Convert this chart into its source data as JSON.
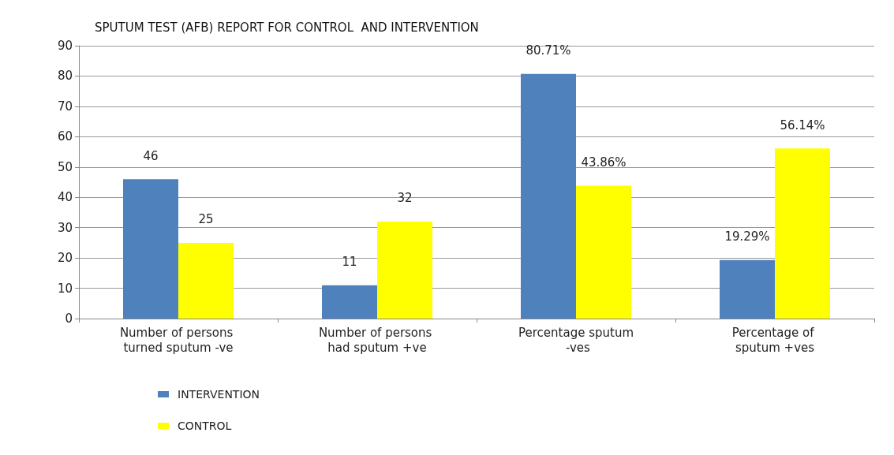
{
  "chart_data": {
    "type": "bar",
    "title": "SPUTUM TEST (AFB) REPORT FOR CONTROL  AND INTERVENTION",
    "categories": [
      "Number of persons turned sputum -ve",
      "Number of persons had sputum +ve",
      "Percentage sputum -ves",
      "Percentage of sputum +ves"
    ],
    "series": [
      {
        "name": "INTERVENTION",
        "color": "#4f81bd",
        "values": [
          46,
          11,
          80.71,
          19.29
        ],
        "value_labels": [
          "46",
          "11",
          "80.71%",
          "19.29%"
        ]
      },
      {
        "name": "CONTROL",
        "color": "#ffff00",
        "values": [
          25,
          32,
          43.86,
          56.14
        ],
        "value_labels": [
          "25",
          "32",
          "43.86%",
          "56.14%"
        ]
      }
    ],
    "ylim": [
      0,
      90
    ],
    "yticks": [
      0,
      10,
      20,
      30,
      40,
      50,
      60,
      70,
      80,
      90
    ],
    "grid": "y",
    "legend": "bottom left"
  }
}
